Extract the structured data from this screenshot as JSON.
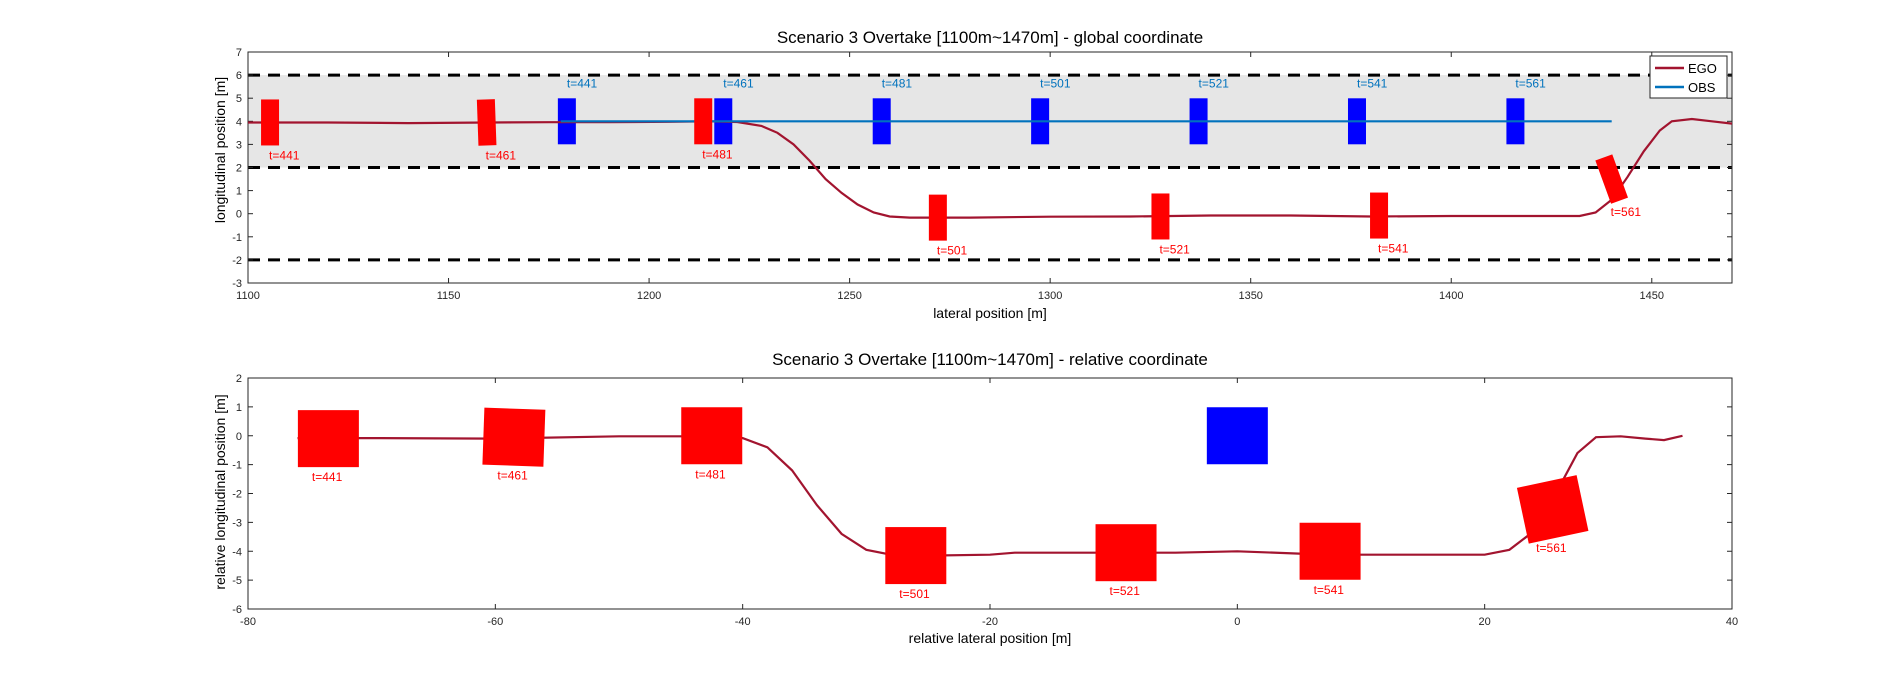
{
  "chart_data": [
    {
      "type": "line",
      "title": "Scenario 3 Overtake [1100m~1470m] - global coordinate",
      "xlabel": "lateral position [m]",
      "ylabel": "longitudinal position [m]",
      "xlim": [
        1100,
        1470
      ],
      "ylim": [
        -3,
        7
      ],
      "xticks": [
        1100,
        1150,
        1200,
        1250,
        1300,
        1350,
        1400,
        1450
      ],
      "yticks": [
        -3,
        -2,
        -1,
        0,
        1,
        2,
        3,
        4,
        5,
        6,
        7
      ],
      "grid": false,
      "legend": {
        "position": "top-right",
        "entries": [
          {
            "label": "EGO",
            "color": "#a2142f"
          },
          {
            "label": "OBS",
            "color": "#0072bd"
          }
        ]
      },
      "road": {
        "shade": [
          2,
          6
        ],
        "dashed_lines": [
          6,
          2,
          -2
        ],
        "color": "#e6e6e6"
      },
      "series": [
        {
          "name": "EGO",
          "color": "#a2142f",
          "points": [
            [
              1100,
              3.95
            ],
            [
              1120,
              3.95
            ],
            [
              1140,
              3.92
            ],
            [
              1160,
              3.95
            ],
            [
              1175,
              3.96
            ],
            [
              1190,
              3.96
            ],
            [
              1205,
              3.98
            ],
            [
              1215,
              4.0
            ],
            [
              1222,
              3.97
            ],
            [
              1228,
              3.8
            ],
            [
              1232,
              3.5
            ],
            [
              1236,
              3.0
            ],
            [
              1240,
              2.3
            ],
            [
              1244,
              1.5
            ],
            [
              1248,
              0.9
            ],
            [
              1252,
              0.4
            ],
            [
              1256,
              0.05
            ],
            [
              1260,
              -0.12
            ],
            [
              1265,
              -0.17
            ],
            [
              1280,
              -0.17
            ],
            [
              1300,
              -0.13
            ],
            [
              1320,
              -0.12
            ],
            [
              1340,
              -0.08
            ],
            [
              1360,
              -0.08
            ],
            [
              1380,
              -0.12
            ],
            [
              1400,
              -0.1
            ],
            [
              1420,
              -0.1
            ],
            [
              1432,
              -0.1
            ],
            [
              1436,
              0.05
            ],
            [
              1440,
              0.6
            ],
            [
              1444,
              1.6
            ],
            [
              1448,
              2.7
            ],
            [
              1452,
              3.6
            ],
            [
              1455,
              4.0
            ],
            [
              1460,
              4.1
            ],
            [
              1465,
              4.0
            ],
            [
              1470,
              3.9
            ]
          ]
        },
        {
          "name": "OBS",
          "color": "#0072bd",
          "points": [
            [
              1178,
              4.0
            ],
            [
              1440,
              4.0
            ]
          ]
        }
      ],
      "ego_boxes": [
        {
          "label": "t=441",
          "x": 1105.5,
          "y": 3.95,
          "angle": 0
        },
        {
          "label": "t=461",
          "x": 1159.5,
          "y": 3.95,
          "angle": 2
        },
        {
          "label": "t=481",
          "x": 1213.5,
          "y": 4.0,
          "angle": 0
        },
        {
          "label": "t=501",
          "x": 1272,
          "y": -0.17,
          "angle": 0
        },
        {
          "label": "t=521",
          "x": 1327.5,
          "y": -0.12,
          "angle": 0
        },
        {
          "label": "t=541",
          "x": 1382,
          "y": -0.08,
          "angle": 0
        },
        {
          "label": "t=561",
          "x": 1440,
          "y": 1.5,
          "angle": 20
        }
      ],
      "obs_boxes": [
        {
          "label": "t=441",
          "x": 1179.5,
          "y": 4.0
        },
        {
          "label": "t=461",
          "x": 1218.5,
          "y": 4.0
        },
        {
          "label": "t=481",
          "x": 1258,
          "y": 4.0
        },
        {
          "label": "t=501",
          "x": 1297.5,
          "y": 4.0
        },
        {
          "label": "t=521",
          "x": 1337,
          "y": 4.0
        },
        {
          "label": "t=541",
          "x": 1376.5,
          "y": 4.0
        },
        {
          "label": "t=561",
          "x": 1416,
          "y": 4.0
        }
      ]
    },
    {
      "type": "line",
      "title": "Scenario 3 Overtake [1100m~1470m] - relative coordinate",
      "xlabel": "relative lateral position [m]",
      "ylabel": "relative longitudinal position [m]",
      "xlim": [
        -80,
        40
      ],
      "ylim": [
        -6,
        2
      ],
      "xticks": [
        -80,
        -60,
        -40,
        -20,
        0,
        20,
        40
      ],
      "yticks": [
        -6,
        -5,
        -4,
        -3,
        -2,
        -1,
        0,
        1,
        2
      ],
      "grid": false,
      "series": [
        {
          "name": "EGO",
          "color": "#a2142f",
          "points": [
            [
              -76,
              -0.08
            ],
            [
              -70,
              -0.08
            ],
            [
              -60,
              -0.1
            ],
            [
              -50,
              -0.02
            ],
            [
              -43,
              -0.02
            ],
            [
              -40,
              -0.08
            ],
            [
              -38,
              -0.4
            ],
            [
              -36,
              -1.2
            ],
            [
              -34,
              -2.4
            ],
            [
              -32,
              -3.4
            ],
            [
              -30,
              -3.95
            ],
            [
              -28,
              -4.12
            ],
            [
              -25,
              -4.15
            ],
            [
              -20,
              -4.12
            ],
            [
              -18,
              -4.05
            ],
            [
              -10,
              -4.05
            ],
            [
              -5,
              -4.05
            ],
            [
              0,
              -4.0
            ],
            [
              5,
              -4.08
            ],
            [
              10,
              -4.12
            ],
            [
              20,
              -4.12
            ],
            [
              22,
              -3.95
            ],
            [
              24,
              -3.3
            ],
            [
              26,
              -1.8
            ],
            [
              27.5,
              -0.6
            ],
            [
              29,
              -0.05
            ],
            [
              31,
              -0.02
            ],
            [
              33,
              -0.1
            ],
            [
              34.5,
              -0.15
            ],
            [
              36,
              0.0
            ]
          ]
        }
      ],
      "ego_boxes": [
        {
          "label": "t=441",
          "x": -73.5,
          "y": -0.1,
          "angle": 0
        },
        {
          "label": "t=461",
          "x": -58.5,
          "y": -0.05,
          "angle": -2
        },
        {
          "label": "t=481",
          "x": -42.5,
          "y": 0.0,
          "angle": 0
        },
        {
          "label": "t=501",
          "x": -26,
          "y": -4.15,
          "angle": 0
        },
        {
          "label": "t=521",
          "x": -9,
          "y": -4.05,
          "angle": 0
        },
        {
          "label": "t=541",
          "x": 7.5,
          "y": -4.0,
          "angle": 0
        },
        {
          "label": "t=561",
          "x": 25.5,
          "y": -2.55,
          "angle": 12
        }
      ],
      "obs_boxes": [
        {
          "label": "",
          "x": 0,
          "y": 0.0
        }
      ]
    }
  ]
}
